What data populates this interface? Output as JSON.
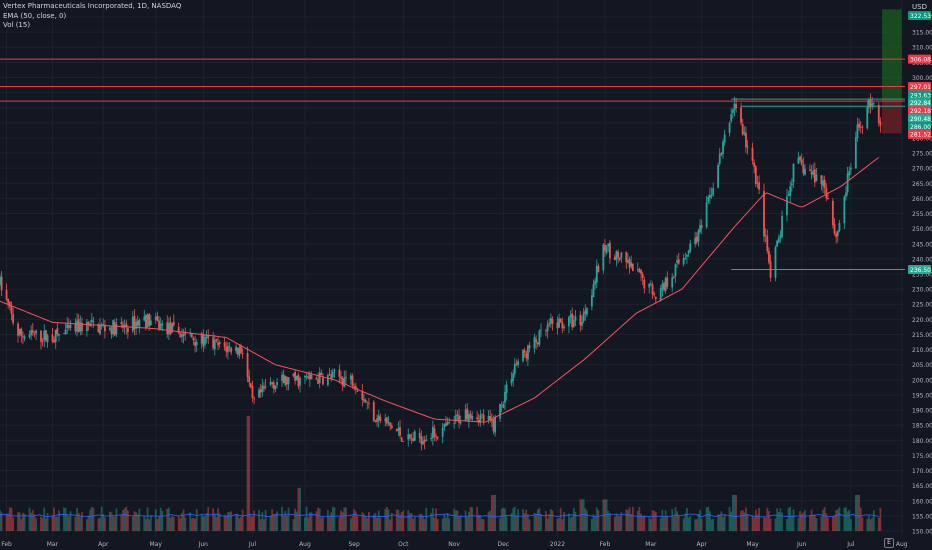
{
  "legend": {
    "title": "Vertex Pharmaceuticals Incorporated, 1D, NASDAQ",
    "ema": "EMA (50, close, 0)",
    "vol": "Vol (15)"
  },
  "currency": "USD",
  "earnings_marker": "E",
  "colors": {
    "background": "#131722",
    "grid": "#1e222d",
    "up": "#26a69a",
    "down": "#ef5350",
    "ema": "#f7525f",
    "vol_ma": "#2962ff",
    "hline_red": "#f23645",
    "hline_cyan": "#22ab94",
    "axis_text": "#b2b5be",
    "position_profit": "#1b5e20",
    "position_loss": "#6d1f26"
  },
  "chart_data": {
    "type": "candlestick",
    "symbol": "VRTX",
    "interval": "1D",
    "exchange": "NASDAQ",
    "y_range": [
      148,
      324
    ],
    "y_ticks": [
      150,
      155,
      160,
      165,
      170,
      175,
      180,
      185,
      190,
      195,
      200,
      205,
      210,
      215,
      220,
      225,
      230,
      235,
      240,
      245,
      250,
      255,
      260,
      265,
      270,
      275,
      280,
      285,
      290,
      295,
      300,
      305,
      310,
      315,
      320
    ],
    "x_labels": [
      {
        "label": "Feb",
        "date": "2021-02-01"
      },
      {
        "label": "Mar",
        "date": "2021-03-01"
      },
      {
        "label": "Apr",
        "date": "2021-04-01"
      },
      {
        "label": "May",
        "date": "2021-05-03"
      },
      {
        "label": "Jun",
        "date": "2021-06-01"
      },
      {
        "label": "Jul",
        "date": "2021-07-01"
      },
      {
        "label": "Aug",
        "date": "2021-08-02"
      },
      {
        "label": "Sep",
        "date": "2021-09-01"
      },
      {
        "label": "Oct",
        "date": "2021-10-01"
      },
      {
        "label": "Nov",
        "date": "2021-11-01"
      },
      {
        "label": "Dec",
        "date": "2021-12-01"
      },
      {
        "label": "2022",
        "date": "2022-01-03"
      },
      {
        "label": "Feb",
        "date": "2022-02-01"
      },
      {
        "label": "Mar",
        "date": "2022-03-01"
      },
      {
        "label": "Apr",
        "date": "2022-04-01"
      },
      {
        "label": "May",
        "date": "2022-05-02"
      },
      {
        "label": "Jun",
        "date": "2022-06-01"
      },
      {
        "label": "Jul",
        "date": "2022-07-01"
      },
      {
        "label": "Aug",
        "date": "2022-08-01"
      }
    ],
    "x_range": [
      "2021-01-28",
      "2022-08-03"
    ],
    "price_keyframes": [
      {
        "date": "2021-01-28",
        "close": 232
      },
      {
        "date": "2021-02-08",
        "close": 215
      },
      {
        "date": "2021-03-01",
        "close": 214
      },
      {
        "date": "2021-03-20",
        "close": 218
      },
      {
        "date": "2021-04-12",
        "close": 217
      },
      {
        "date": "2021-04-26",
        "close": 220
      },
      {
        "date": "2021-05-20",
        "close": 215
      },
      {
        "date": "2021-06-10",
        "close": 211
      },
      {
        "date": "2021-06-25",
        "close": 210
      },
      {
        "date": "2021-07-01",
        "close": 192
      },
      {
        "date": "2021-07-12",
        "close": 199
      },
      {
        "date": "2021-07-30",
        "close": 200
      },
      {
        "date": "2021-08-20",
        "close": 201
      },
      {
        "date": "2021-09-01",
        "close": 200
      },
      {
        "date": "2021-09-12",
        "close": 189
      },
      {
        "date": "2021-10-04",
        "close": 180
      },
      {
        "date": "2021-10-25",
        "close": 183
      },
      {
        "date": "2021-11-10",
        "close": 190
      },
      {
        "date": "2021-11-25",
        "close": 185
      },
      {
        "date": "2021-12-08",
        "close": 205
      },
      {
        "date": "2021-12-30",
        "close": 218
      },
      {
        "date": "2022-01-18",
        "close": 220
      },
      {
        "date": "2022-02-01",
        "close": 244
      },
      {
        "date": "2022-02-15",
        "close": 238
      },
      {
        "date": "2022-03-05",
        "close": 228
      },
      {
        "date": "2022-04-01",
        "close": 250
      },
      {
        "date": "2022-04-21",
        "close": 292
      },
      {
        "date": "2022-05-05",
        "close": 265
      },
      {
        "date": "2022-05-13",
        "close": 234
      },
      {
        "date": "2022-05-28",
        "close": 272
      },
      {
        "date": "2022-06-15",
        "close": 265
      },
      {
        "date": "2022-06-22",
        "close": 247
      },
      {
        "date": "2022-07-05",
        "close": 282
      },
      {
        "date": "2022-07-14",
        "close": 293
      },
      {
        "date": "2022-07-19",
        "close": 285
      }
    ],
    "ema_keyframes": [
      {
        "date": "2021-01-28",
        "value": 226
      },
      {
        "date": "2021-03-01",
        "value": 219
      },
      {
        "date": "2021-05-01",
        "value": 217
      },
      {
        "date": "2021-06-15",
        "value": 214
      },
      {
        "date": "2021-07-15",
        "value": 205
      },
      {
        "date": "2021-08-20",
        "value": 200
      },
      {
        "date": "2021-09-20",
        "value": 193
      },
      {
        "date": "2021-10-20",
        "value": 187
      },
      {
        "date": "2021-11-20",
        "value": 186
      },
      {
        "date": "2021-12-20",
        "value": 194
      },
      {
        "date": "2022-01-20",
        "value": 207
      },
      {
        "date": "2022-02-20",
        "value": 222
      },
      {
        "date": "2022-03-20",
        "value": 230
      },
      {
        "date": "2022-04-20",
        "value": 250
      },
      {
        "date": "2022-05-10",
        "value": 262
      },
      {
        "date": "2022-06-01",
        "value": 257
      },
      {
        "date": "2022-06-25",
        "value": 264
      },
      {
        "date": "2022-07-19",
        "value": 274
      }
    ],
    "volume_spikes": [
      {
        "date": "2021-06-28",
        "size": 8
      },
      {
        "date": "2021-07-30",
        "size": 3
      },
      {
        "date": "2021-11-25",
        "size": 2.5
      },
      {
        "date": "2022-01-18",
        "size": 2.2
      },
      {
        "date": "2022-02-01",
        "size": 2.2
      },
      {
        "date": "2022-04-21",
        "size": 2.5
      },
      {
        "date": "2022-07-05",
        "size": 2.5
      }
    ],
    "horizontal_lines": [
      {
        "price": 306.08,
        "color": "red",
        "start": "2021-01-28"
      },
      {
        "price": 297.01,
        "color": "red",
        "start": "2021-01-28"
      },
      {
        "price": 292.84,
        "color": "cyan",
        "start": "2022-04-19"
      },
      {
        "price": 292.18,
        "color": "red",
        "start": "2021-01-28"
      },
      {
        "price": 290.48,
        "color": "cyan",
        "start": "2022-04-25"
      },
      {
        "price": 236.5,
        "color": "cyan",
        "start": "2022-04-19"
      }
    ],
    "position_tool": {
      "start": "2022-07-20",
      "end": "2022-08-01",
      "target": 322.53,
      "entry": 292.84,
      "stop": 281.52
    },
    "price_labels": [
      {
        "text": "322.53",
        "price": 320.5,
        "bg": "#089981"
      },
      {
        "text": "306.08",
        "price": 306.08,
        "bg": "#f23645"
      },
      {
        "text": "297.01",
        "price": 297.01,
        "bg": "#f23645"
      },
      {
        "text": "293.63",
        "price": 294.2,
        "bg": "#089981"
      },
      {
        "text": "292.84",
        "price": 291.6,
        "bg": "#22ab94"
      },
      {
        "text": "292.18",
        "price": 289.0,
        "bg": "#f23645"
      },
      {
        "text": "290.48",
        "price": 286.4,
        "bg": "#22ab94"
      },
      {
        "text": "286.00",
        "price": 283.8,
        "bg": "#089981"
      },
      {
        "text": "281.52",
        "price": 281.2,
        "bg": "#f23645"
      },
      {
        "text": "236.50",
        "price": 236.5,
        "bg": "#22ab94"
      }
    ]
  }
}
